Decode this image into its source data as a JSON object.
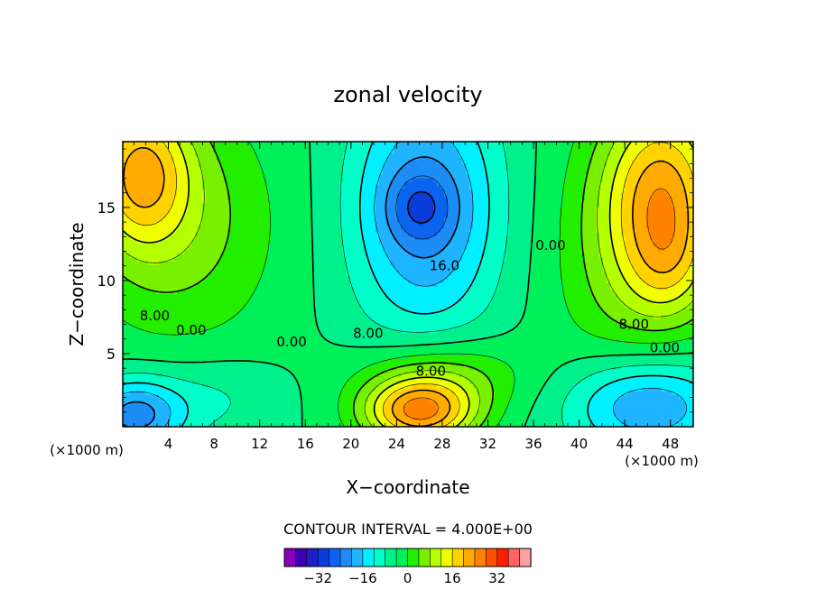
{
  "chart_data": {
    "type": "heatmap",
    "subtype": "filled-contour",
    "title": "zonal velocity",
    "xlabel": "X−coordinate",
    "ylabel": "Z−coordinate",
    "x_unit_left": "(×1000 m)",
    "x_unit_right": "(×1000 m)",
    "xlim": [
      0,
      50
    ],
    "ylim": [
      0,
      19.5
    ],
    "xticks": [
      4,
      8,
      12,
      16,
      20,
      24,
      28,
      32,
      36,
      40,
      44,
      48
    ],
    "yticks": [
      5,
      10,
      15
    ],
    "contour_interval_text": "CONTOUR INTERVAL = 4.000E+00",
    "contour_labels": [
      {
        "text": "8.00",
        "x": 2.8,
        "z": 7.6
      },
      {
        "text": "0.00",
        "x": 6.0,
        "z": 6.6
      },
      {
        "text": "0.00",
        "x": 14.8,
        "z": 5.8
      },
      {
        "text": "8.00",
        "x": 21.5,
        "z": 6.4
      },
      {
        "text": "16.0",
        "x": 28.2,
        "z": 11.0
      },
      {
        "text": "0.00",
        "x": 37.5,
        "z": 12.4
      },
      {
        "text": "8.00",
        "x": 27.0,
        "z": 3.8
      },
      {
        "text": "8.00",
        "x": 44.8,
        "z": 7.0
      },
      {
        "text": "0.00",
        "x": 47.5,
        "z": 5.4
      }
    ],
    "features": [
      {
        "x": 26,
        "z": 1.0,
        "sigma_x": 3.5,
        "sigma_z": 1.6,
        "amp": 28
      },
      {
        "x": 28,
        "z": 3.5,
        "sigma_x": 5.0,
        "sigma_z": 1.8,
        "amp": 10
      },
      {
        "x": 1.5,
        "z": 17.5,
        "sigma_x": 3.0,
        "sigma_z": 3.5,
        "amp": 20
      },
      {
        "x": 47.5,
        "z": 16.0,
        "sigma_x": 3.5,
        "sigma_z": 4.5,
        "amp": 20
      },
      {
        "x": 48.0,
        "z": 11.0,
        "sigma_x": 2.5,
        "sigma_z": 2.5,
        "amp": 6
      },
      {
        "x": 5,
        "z": 14,
        "sigma_x": 6,
        "sigma_z": 6,
        "amp": 10
      },
      {
        "x": 45,
        "z": 12,
        "sigma_x": 5,
        "sigma_z": 7,
        "amp": 10
      },
      {
        "x": 26.5,
        "z": 15,
        "sigma_x": 4.5,
        "sigma_z": 6,
        "amp": -18
      },
      {
        "x": 26.0,
        "z": 15.0,
        "sigma_x": 2.0,
        "sigma_z": 1.6,
        "amp": -8
      },
      {
        "x": 1.0,
        "z": 0.8,
        "sigma_x": 3.0,
        "sigma_z": 1.8,
        "amp": -18
      },
      {
        "x": 46,
        "z": 1.5,
        "sigma_x": 5,
        "sigma_z": 2.5,
        "amp": -18
      },
      {
        "x": 8,
        "z": 2,
        "sigma_x": 4,
        "sigma_z": 2,
        "amp": -5
      }
    ],
    "colorbar": {
      "levels": [
        -36,
        -32,
        -28,
        -24,
        -20,
        -16,
        -12,
        -8,
        -4,
        0,
        4,
        8,
        12,
        16,
        20,
        24,
        28,
        32,
        36
      ],
      "colors": [
        "#8800bb",
        "#3c00b0",
        "#1e1ec8",
        "#0a3cdc",
        "#0a64f0",
        "#1e8cf5",
        "#1eb4ff",
        "#00f0ff",
        "#00ffc8",
        "#00f08c",
        "#00f05a",
        "#22ee00",
        "#78f000",
        "#b4ff00",
        "#f0ff00",
        "#ffd200",
        "#ffaa00",
        "#ff8200",
        "#ff5000",
        "#ff1e00",
        "#ff6464",
        "#ffa0a0"
      ],
      "tick_labels": [
        "−32",
        "−16",
        "0",
        "16",
        "32"
      ],
      "tick_values": [
        -32,
        -16,
        0,
        16,
        32
      ]
    }
  }
}
